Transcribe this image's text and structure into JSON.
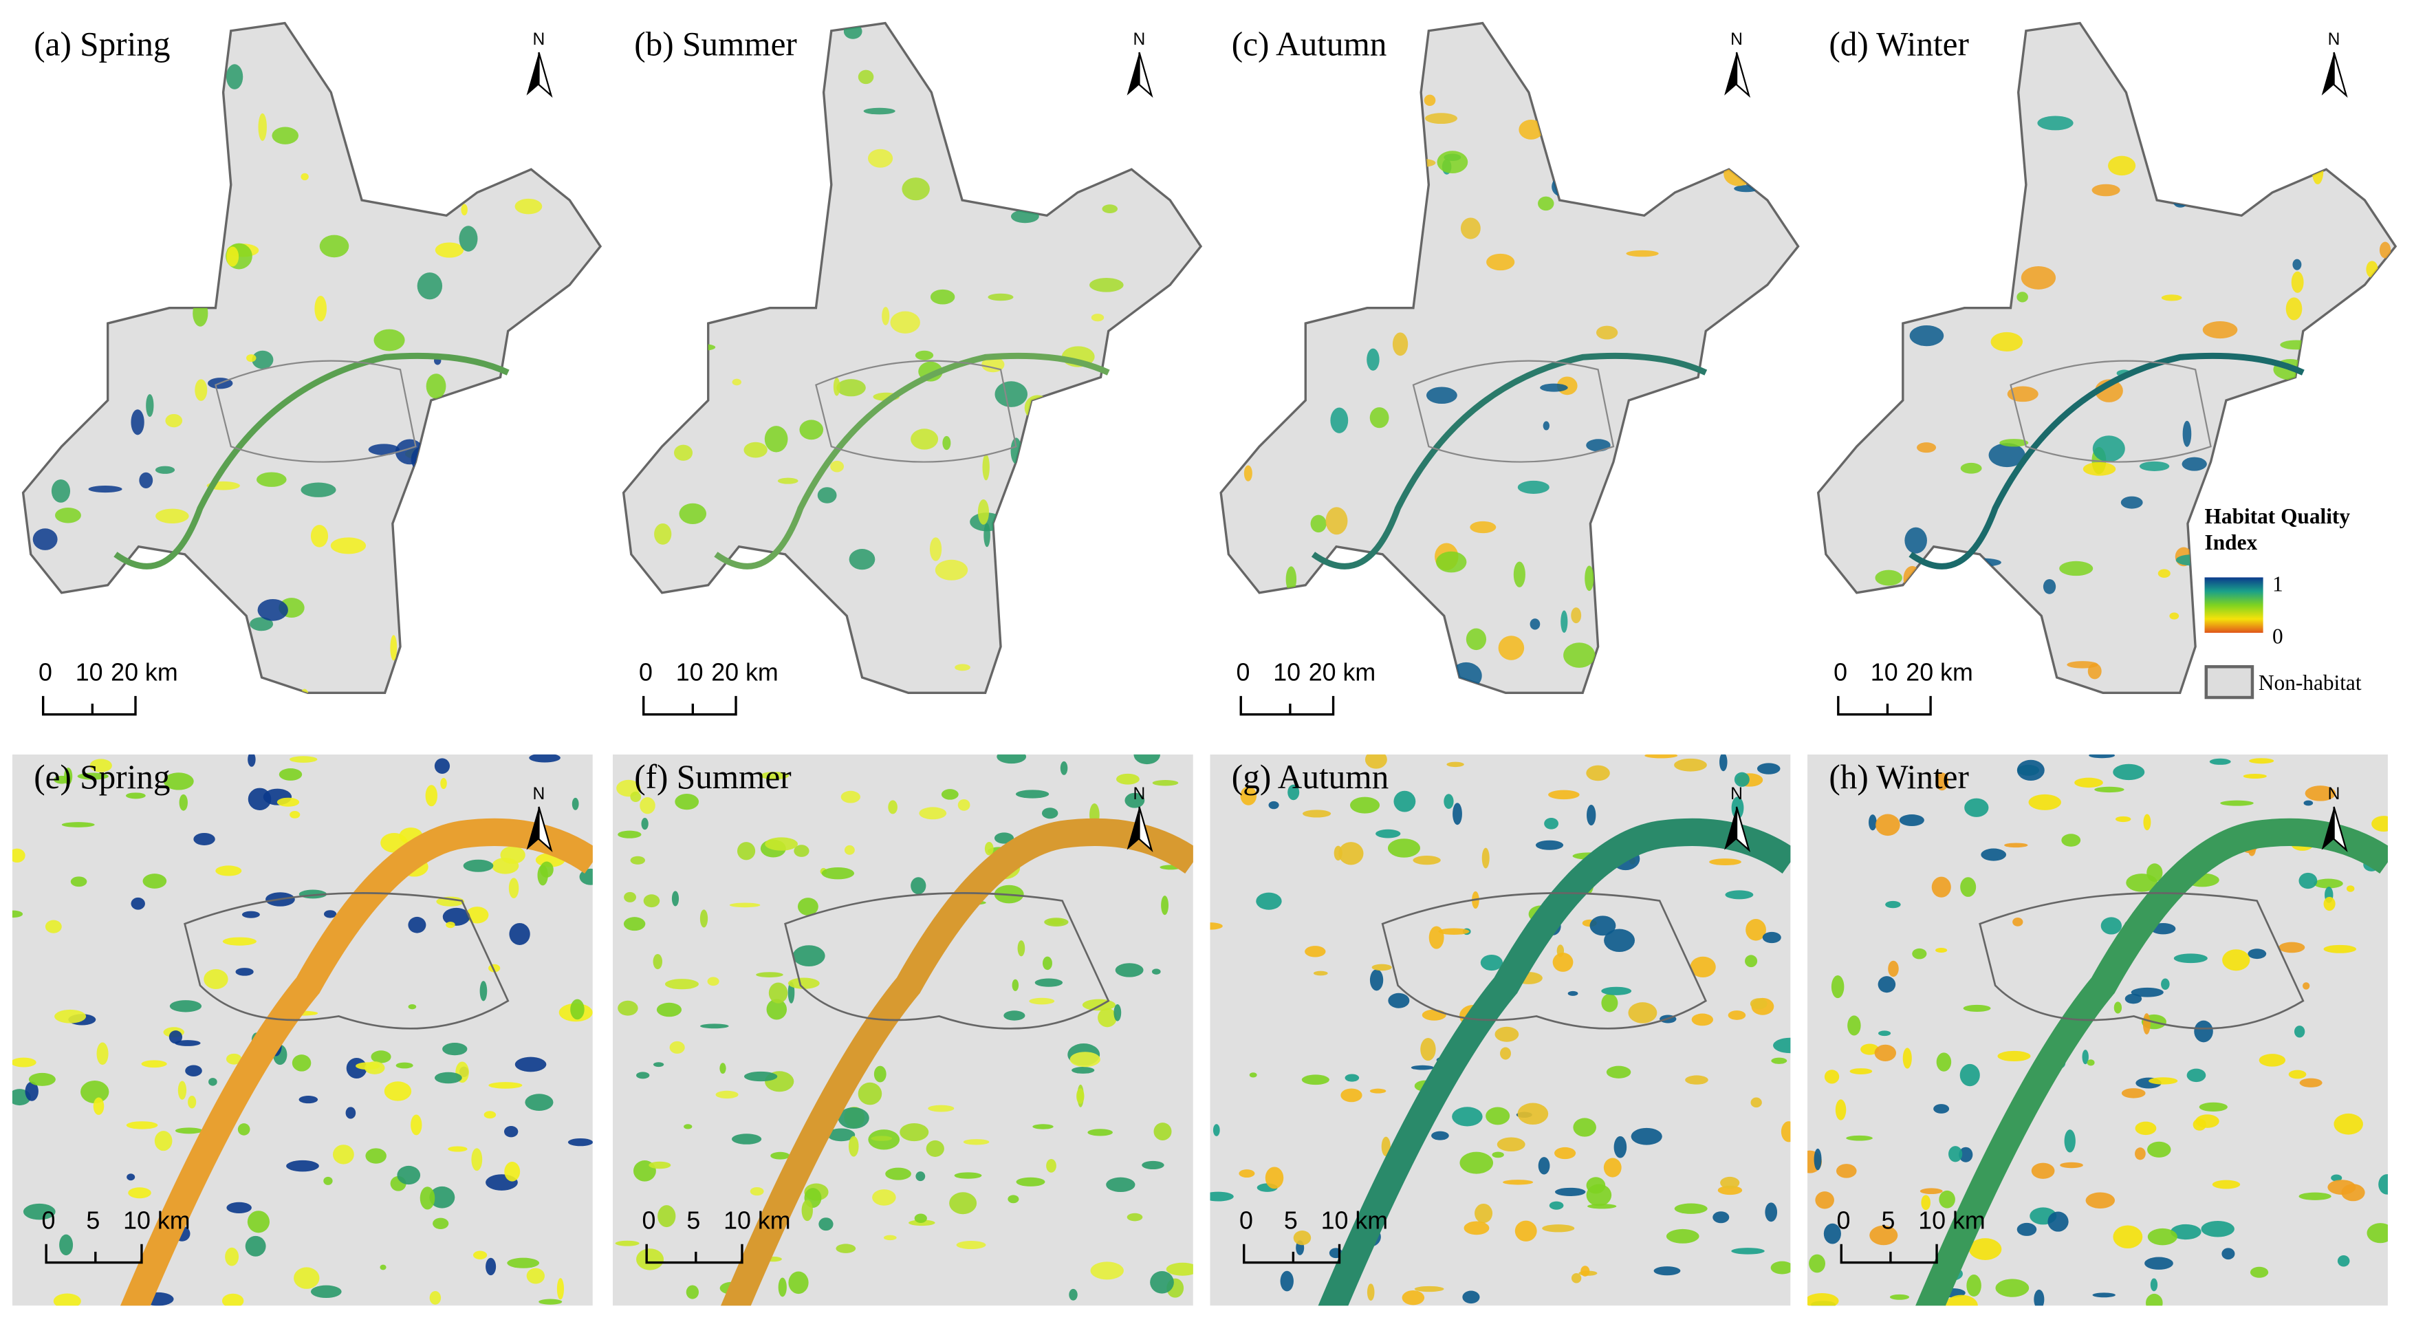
{
  "panels": [
    {
      "label": "(a) Spring",
      "north": "N",
      "scale": [
        "0",
        "10",
        "20 km"
      ]
    },
    {
      "label": "(b) Summer",
      "north": "N",
      "scale": [
        "0",
        "10",
        "20 km"
      ]
    },
    {
      "label": "(c) Autumn",
      "north": "N",
      "scale": [
        "0",
        "10",
        "20 km"
      ]
    },
    {
      "label": "(d) Winter",
      "north": "N",
      "scale": [
        "0",
        "10",
        "20 km"
      ]
    },
    {
      "label": "(e) Spring",
      "north": "N",
      "scale": [
        "0",
        "5",
        "10 km"
      ]
    },
    {
      "label": "(f) Summer",
      "north": "N",
      "scale": [
        "0",
        "5",
        "10 km"
      ]
    },
    {
      "label": "(g) Autumn",
      "north": "N",
      "scale": [
        "0",
        "5",
        "10 km"
      ]
    },
    {
      "label": "(h) Winter",
      "north": "N",
      "scale": [
        "0",
        "5",
        "10 km"
      ]
    }
  ],
  "legend": {
    "title_lines": [
      "Habitat Quality",
      "Index"
    ],
    "max": "1",
    "min": "0",
    "non_habitat": "Non-habitat"
  }
}
